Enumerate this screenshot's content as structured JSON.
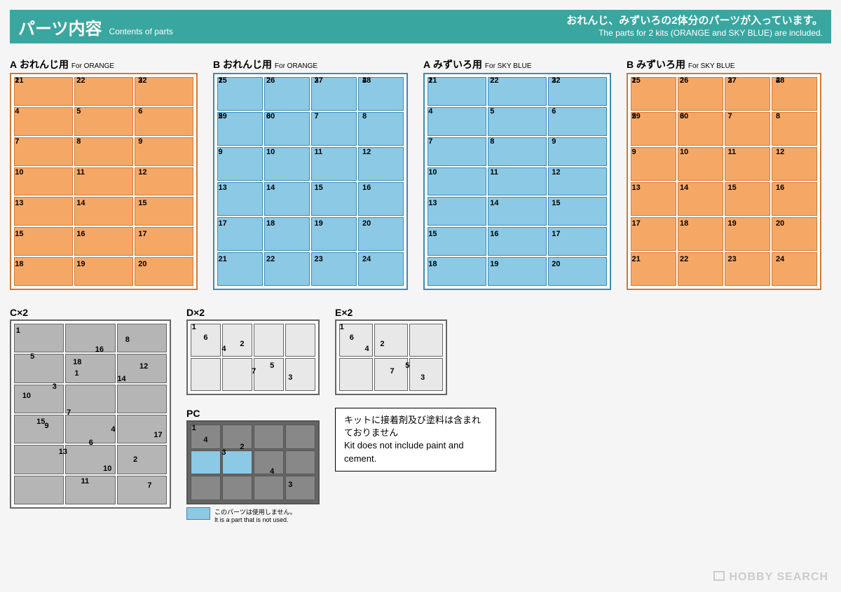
{
  "header": {
    "title_jp": "パーツ内容",
    "title_en": "Contents of parts",
    "note_jp": "おれんじ、みずいろの2体分のパーツが入っています。",
    "note_en": "The parts for 2 kits (ORANGE and SKY BLUE) are included."
  },
  "colors": {
    "header_bg": "#3aa6a0",
    "orange_line": "#d47830",
    "orange_fill": "#f5a866",
    "skyblue_line": "#3a8bb8",
    "skyblue_fill": "#8cc9e4",
    "gray_line": "#666666",
    "gray_fill": "#b5b5b5"
  },
  "runners_row1": [
    {
      "id": "A-orange",
      "label_prefix": "A",
      "label_jp": "おれんじ用",
      "label_en": "For ORANGE",
      "color": "orange",
      "type": "A"
    },
    {
      "id": "B-orange",
      "label_prefix": "B",
      "label_jp": "おれんじ用",
      "label_en": "For ORANGE",
      "color": "skyblue",
      "type": "B"
    },
    {
      "id": "A-skyblue",
      "label_prefix": "A",
      "label_jp": "みずいろ用",
      "label_en": "For SKY BLUE",
      "color": "skyblue",
      "type": "A"
    },
    {
      "id": "B-skyblue",
      "label_prefix": "B",
      "label_jp": "みずいろ用",
      "label_en": "For SKY BLUE",
      "color": "orange",
      "type": "B"
    }
  ],
  "runner_A_numbers": [
    "1",
    "2",
    "3",
    "4",
    "5",
    "6",
    "7",
    "8",
    "9",
    "10",
    "11",
    "12",
    "13",
    "14",
    "15",
    "15",
    "16",
    "17",
    "18",
    "19",
    "20",
    "21",
    "22",
    "22"
  ],
  "runner_B_numbers": [
    "1",
    "2",
    "3",
    "4",
    "5",
    "6",
    "7",
    "8",
    "9",
    "10",
    "11",
    "12",
    "13",
    "14",
    "15",
    "16",
    "17",
    "18",
    "19",
    "20",
    "21",
    "22",
    "23",
    "24",
    "25",
    "26",
    "27",
    "28",
    "29",
    "30"
  ],
  "runners_row2": {
    "C": {
      "label": "C×2",
      "numbers": [
        "1",
        "1",
        "2",
        "3",
        "4",
        "5",
        "6",
        "7",
        "7",
        "8",
        "9",
        "10",
        "10",
        "11",
        "12",
        "13",
        "14",
        "15",
        "16",
        "17",
        "18"
      ]
    },
    "D": {
      "label": "D×2",
      "numbers": [
        "1",
        "2",
        "3",
        "4",
        "5",
        "6",
        "7"
      ]
    },
    "E": {
      "label": "E×2",
      "numbers": [
        "1",
        "2",
        "3",
        "4",
        "5",
        "6",
        "7"
      ]
    },
    "PC": {
      "label": "PC",
      "numbers": [
        "1",
        "2",
        "3",
        "3",
        "4",
        "4"
      ],
      "highlight": [
        4,
        5
      ]
    }
  },
  "note_box": {
    "line1_jp": "キットに接着剤及び塗料は含まれておりません",
    "line2_en": "Kit does not include paint and cement."
  },
  "swatch_note": {
    "jp": "このパーツは使用しません。",
    "en": "It is a part that is not used."
  },
  "watermark": "HOBBY SEARCH"
}
